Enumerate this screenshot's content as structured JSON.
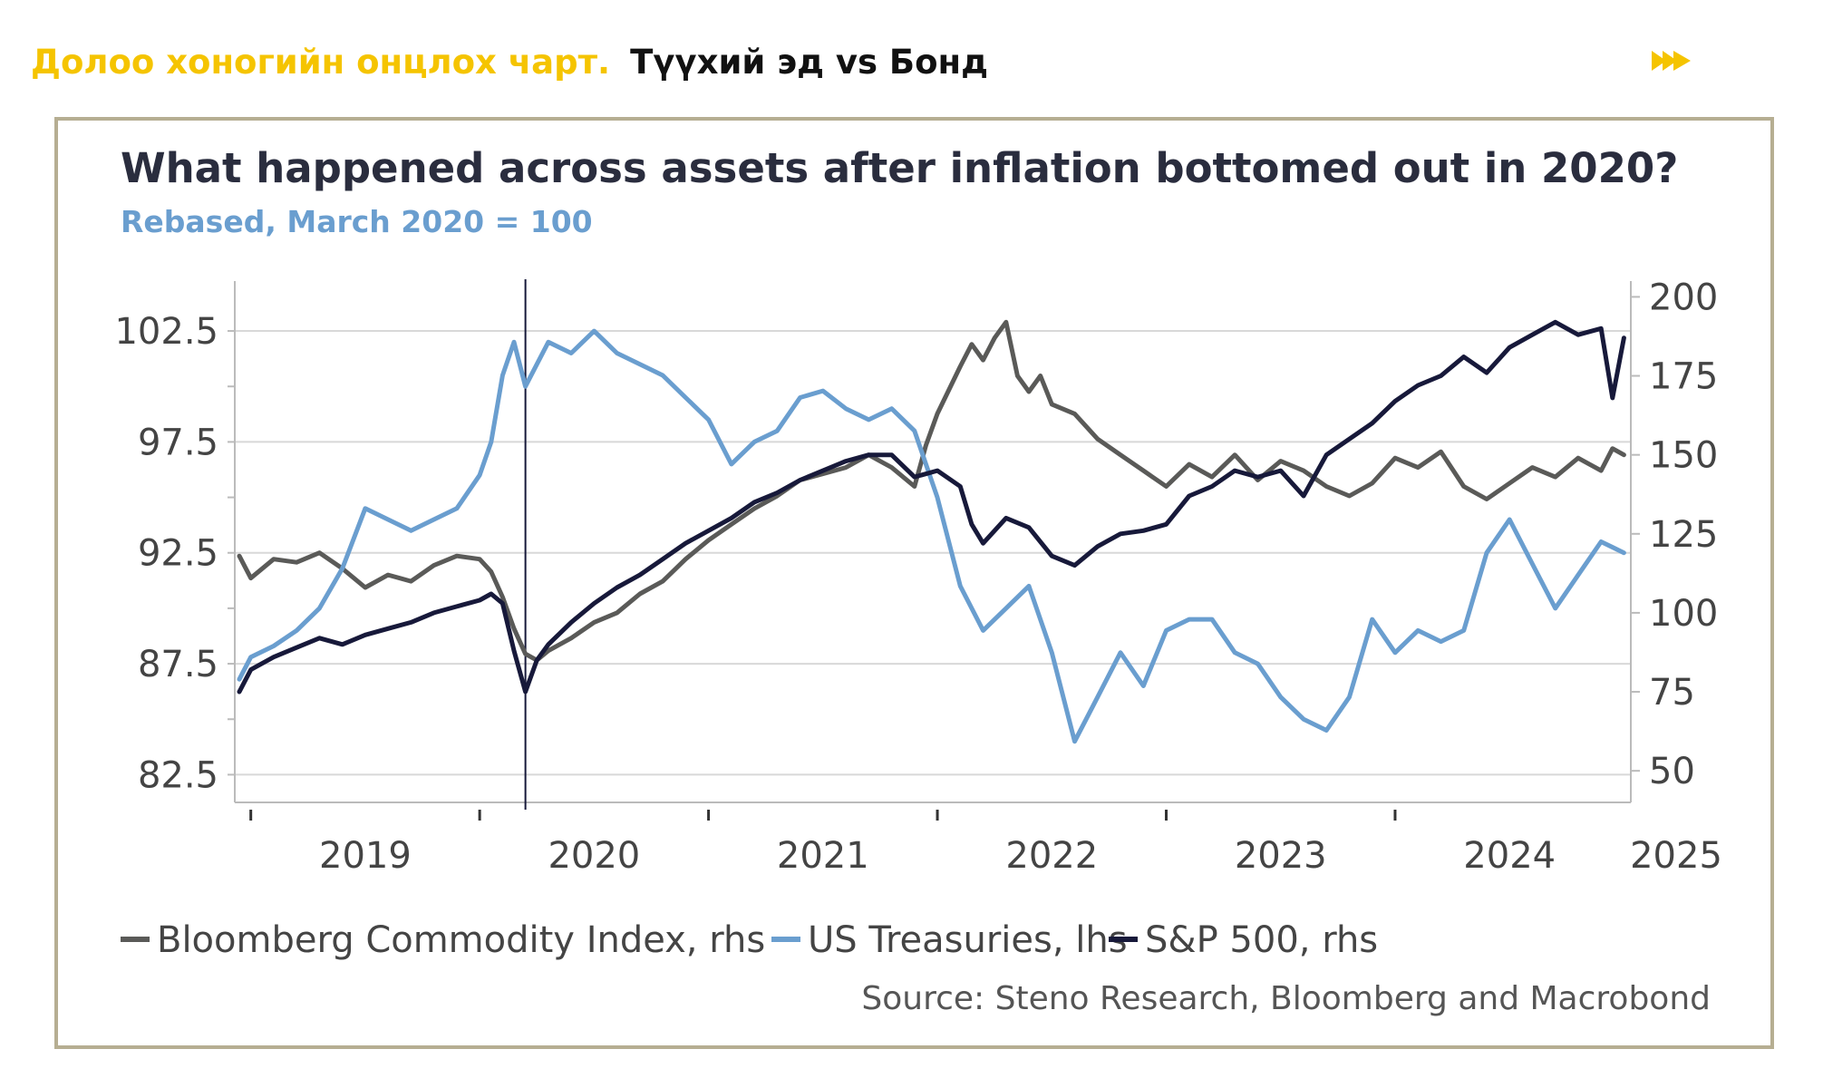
{
  "header": {
    "label_yellow": "Долоо хоногийн онцлох чарт.",
    "label_black": "Түүхий эд vs Бонд",
    "nav_icon": "fast-forward-icon"
  },
  "colors": {
    "brand_yellow": "#F5C400",
    "frame": "#B6AE92",
    "commodity": "#5A5A58",
    "treasuries": "#6A9ECF",
    "sp500": "#17193A",
    "title": "#2A2D3E",
    "subtitle": "#6A9ECF",
    "axis_text": "#444444"
  },
  "chart_data": {
    "type": "line",
    "title": "What happened across assets after inflation bottomed out in 2020?",
    "subtitle": "Rebased, March 2020 = 100",
    "source": "Source: Steno Research, Bloomberg and Macrobond",
    "x_range": [
      2018.93,
      2025.03
    ],
    "x_ticks": [
      2019,
      2020,
      2021,
      2022,
      2023,
      2024,
      2025
    ],
    "x_tick_labels": [
      "2019",
      "2020",
      "2021",
      "2022",
      "2023",
      "2024",
      "2025"
    ],
    "vline_x": 2020.2,
    "left_axis": {
      "range": [
        81.25,
        104.75
      ],
      "ticks": [
        82.5,
        87.5,
        92.5,
        97.5,
        102.5
      ],
      "tick_labels": [
        "82.5",
        "87.5",
        "92.5",
        "97.5",
        "102.5"
      ]
    },
    "right_axis": {
      "range": [
        40,
        205
      ],
      "ticks": [
        50,
        75,
        100,
        125,
        150,
        175,
        200
      ],
      "tick_labels": [
        "50",
        "75",
        "100",
        "125",
        "150",
        "175",
        "200"
      ]
    },
    "series": [
      {
        "name": "Bloomberg Commodity Index, rhs",
        "axis": "right",
        "color": "#5A5A58",
        "x": [
          2018.95,
          2019.0,
          2019.1,
          2019.2,
          2019.3,
          2019.4,
          2019.5,
          2019.6,
          2019.7,
          2019.8,
          2019.9,
          2020.0,
          2020.05,
          2020.1,
          2020.15,
          2020.2,
          2020.25,
          2020.3,
          2020.4,
          2020.5,
          2020.6,
          2020.7,
          2020.8,
          2020.9,
          2021.0,
          2021.1,
          2021.2,
          2021.3,
          2021.4,
          2021.5,
          2021.6,
          2021.7,
          2021.8,
          2021.9,
          2021.95,
          2022.0,
          2022.1,
          2022.15,
          2022.2,
          2022.25,
          2022.3,
          2022.35,
          2022.4,
          2022.45,
          2022.5,
          2022.6,
          2022.7,
          2022.8,
          2022.9,
          2023.0,
          2023.1,
          2023.2,
          2023.3,
          2023.4,
          2023.5,
          2023.6,
          2023.7,
          2023.8,
          2023.9,
          2024.0,
          2024.1,
          2024.2,
          2024.3,
          2024.4,
          2024.5,
          2024.6,
          2024.7,
          2024.8,
          2024.9,
          2024.95,
          2025.0
        ],
        "y": [
          118,
          111,
          117,
          116,
          119,
          114,
          108,
          112,
          110,
          115,
          118,
          117,
          113,
          105,
          95,
          87,
          85,
          88,
          92,
          97,
          100,
          106,
          110,
          117,
          123,
          128,
          133,
          137,
          142,
          144,
          146,
          150,
          146,
          140,
          153,
          163,
          178,
          185,
          180,
          187,
          192,
          175,
          170,
          175,
          166,
          163,
          155,
          150,
          145,
          140,
          147,
          143,
          150,
          142,
          148,
          145,
          140,
          137,
          141,
          149,
          146,
          151,
          140,
          136,
          141,
          146,
          143,
          149,
          145,
          152,
          150
        ]
      },
      {
        "name": "US Treasuries, lhs",
        "axis": "left",
        "color": "#6A9ECF",
        "x": [
          2018.95,
          2019.0,
          2019.1,
          2019.2,
          2019.3,
          2019.4,
          2019.5,
          2019.6,
          2019.7,
          2019.8,
          2019.9,
          2020.0,
          2020.05,
          2020.1,
          2020.15,
          2020.2,
          2020.3,
          2020.4,
          2020.5,
          2020.6,
          2020.7,
          2020.8,
          2020.9,
          2021.0,
          2021.1,
          2021.2,
          2021.3,
          2021.4,
          2021.5,
          2021.6,
          2021.7,
          2021.8,
          2021.9,
          2022.0,
          2022.1,
          2022.2,
          2022.3,
          2022.4,
          2022.5,
          2022.6,
          2022.7,
          2022.8,
          2022.9,
          2023.0,
          2023.1,
          2023.2,
          2023.3,
          2023.4,
          2023.5,
          2023.6,
          2023.7,
          2023.8,
          2023.9,
          2024.0,
          2024.1,
          2024.2,
          2024.3,
          2024.4,
          2024.5,
          2024.6,
          2024.7,
          2024.8,
          2024.9,
          2025.0
        ],
        "y": [
          86.8,
          87.8,
          88.3,
          89.0,
          90.0,
          91.8,
          94.5,
          94.0,
          93.5,
          94.0,
          94.5,
          96.0,
          97.5,
          100.5,
          102.0,
          100.0,
          102.0,
          101.5,
          102.5,
          101.5,
          101.0,
          100.5,
          99.5,
          98.5,
          96.5,
          97.5,
          98.0,
          99.5,
          99.8,
          99.0,
          98.5,
          99.0,
          98.0,
          95.0,
          91.0,
          89.0,
          90.0,
          91.0,
          88.0,
          84.0,
          86.0,
          88.0,
          86.5,
          89.0,
          89.5,
          89.5,
          88.0,
          87.5,
          86.0,
          85.0,
          84.5,
          86.0,
          89.5,
          88.0,
          89.0,
          88.5,
          89.0,
          92.5,
          94.0,
          92.0,
          90.0,
          91.5,
          93.0,
          92.5
        ]
      },
      {
        "name": "S&P 500, rhs",
        "axis": "right",
        "color": "#17193A",
        "x": [
          2018.95,
          2019.0,
          2019.1,
          2019.2,
          2019.3,
          2019.4,
          2019.5,
          2019.6,
          2019.7,
          2019.8,
          2019.9,
          2020.0,
          2020.05,
          2020.1,
          2020.15,
          2020.2,
          2020.25,
          2020.3,
          2020.4,
          2020.5,
          2020.6,
          2020.7,
          2020.8,
          2020.9,
          2021.0,
          2021.1,
          2021.2,
          2021.3,
          2021.4,
          2021.5,
          2021.6,
          2021.7,
          2021.8,
          2021.9,
          2022.0,
          2022.1,
          2022.15,
          2022.2,
          2022.3,
          2022.4,
          2022.5,
          2022.6,
          2022.7,
          2022.8,
          2022.9,
          2023.0,
          2023.1,
          2023.2,
          2023.3,
          2023.4,
          2023.5,
          2023.6,
          2023.7,
          2023.8,
          2023.9,
          2024.0,
          2024.1,
          2024.2,
          2024.3,
          2024.4,
          2024.5,
          2024.6,
          2024.7,
          2024.8,
          2024.9,
          2024.95,
          2025.0
        ],
        "y": [
          75,
          82,
          86,
          89,
          92,
          90,
          93,
          95,
          97,
          100,
          102,
          104,
          106,
          103,
          88,
          75,
          85,
          90,
          97,
          103,
          108,
          112,
          117,
          122,
          126,
          130,
          135,
          138,
          142,
          145,
          148,
          150,
          150,
          143,
          145,
          140,
          128,
          122,
          130,
          127,
          118,
          115,
          121,
          125,
          126,
          128,
          137,
          140,
          145,
          143,
          145,
          137,
          150,
          155,
          160,
          167,
          172,
          175,
          181,
          176,
          184,
          188,
          192,
          188,
          190,
          168,
          187
        ]
      }
    ]
  }
}
